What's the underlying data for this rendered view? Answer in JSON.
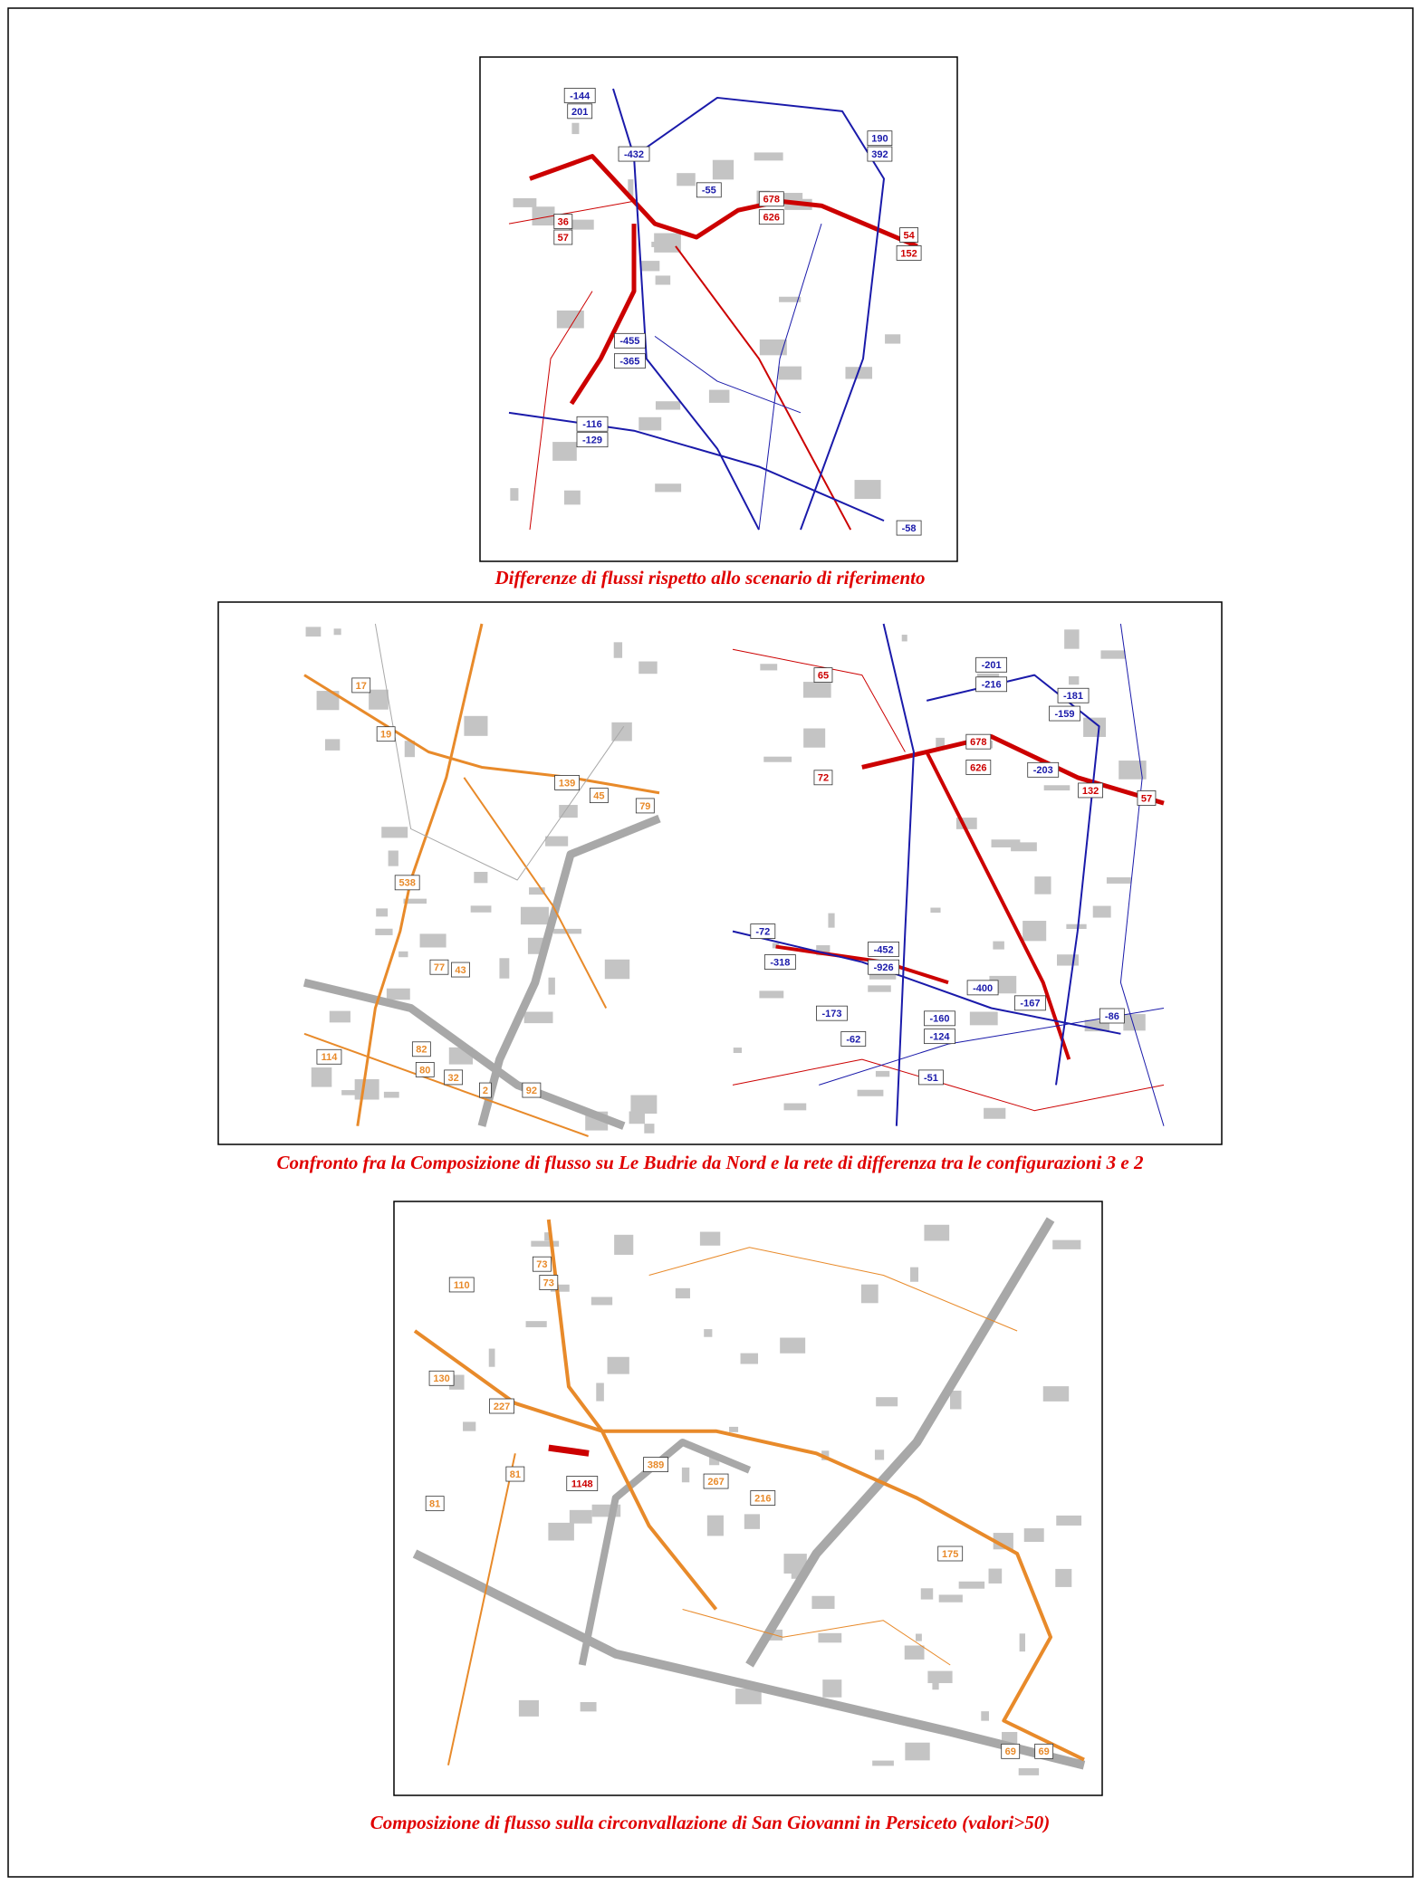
{
  "figures": [
    {
      "caption": "Differenze di flussi rispetto allo scenario di riferimento",
      "maps": [
        {
          "labels": [
            "-144",
            "201",
            "190",
            "392",
            "-432",
            "678",
            "626",
            "54",
            "152",
            "-455",
            "-365",
            "-116",
            "-129",
            "-58",
            "-55",
            "36",
            "57"
          ]
        }
      ]
    },
    {
      "caption": "Confronto fra la Composizione di flusso su Le Budrie da Nord e la rete di differenza tra le configurazioni 3 e 2",
      "maps": [
        {
          "labels": [
            "17",
            "19",
            "139",
            "45",
            "79",
            "538",
            "77",
            "43",
            "114",
            "82",
            "80",
            "32",
            "2",
            "92"
          ]
        },
        {
          "labels": [
            "65",
            "-201",
            "-216",
            "-181",
            "-159",
            "678",
            "626",
            "-203",
            "132",
            "57",
            "72",
            "-72",
            "-318",
            "-452",
            "-926",
            "-400",
            "-167",
            "-160",
            "-124",
            "-173",
            "-62",
            "-86",
            "-51"
          ]
        }
      ]
    },
    {
      "caption": "Composizione di flusso sulla circonvallazione di San Giovanni in Persiceto (valori>50)",
      "maps": [
        {
          "labels": [
            "110",
            "73",
            "73",
            "130",
            "227",
            "81",
            "81",
            "1148",
            "389",
            "267",
            "216",
            "175",
            "69",
            "69"
          ]
        }
      ]
    }
  ]
}
